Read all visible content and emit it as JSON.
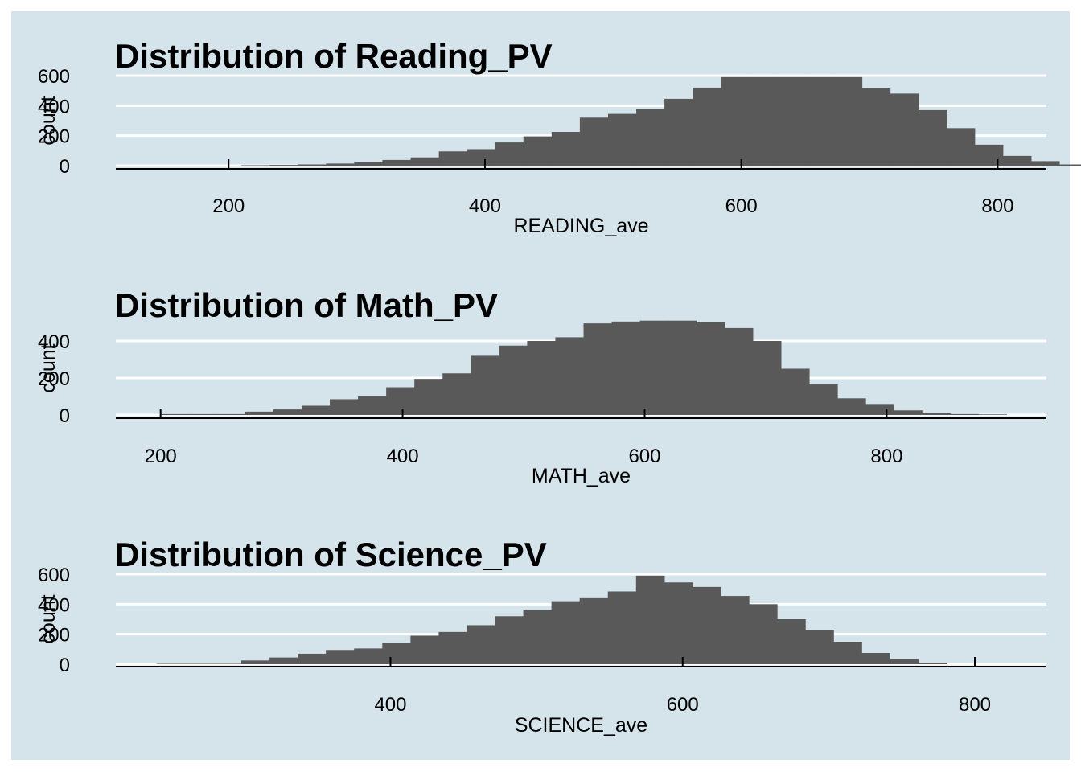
{
  "colors": {
    "background": "#d5e3ea",
    "bars": "#595959",
    "grid": "#ffffff",
    "axis": "#000000"
  },
  "chart_data": [
    {
      "type": "bar",
      "title": "Distribution of Reading_PV",
      "xlabel": "READING_ave",
      "ylabel": "count",
      "xlim": [
        112,
        838
      ],
      "ylim": [
        0,
        600
      ],
      "xticks": [
        "200",
        "400",
        "600",
        "800"
      ],
      "yticks": [
        "0",
        "200",
        "400",
        "600"
      ],
      "bin_width": 22,
      "bin_start": 210,
      "values": [
        3,
        5,
        8,
        14,
        22,
        38,
        55,
        95,
        110,
        155,
        195,
        225,
        320,
        345,
        375,
        445,
        520,
        590,
        590,
        590,
        590,
        590,
        515,
        480,
        370,
        250,
        140,
        65,
        30,
        8
      ]
    },
    {
      "type": "bar",
      "title": "Distribution of Math_PV",
      "xlabel": "MATH_ave",
      "ylabel": "count",
      "xlim": [
        163,
        932
      ],
      "ylim": [
        0,
        500
      ],
      "xticks": [
        "200",
        "400",
        "600",
        "800"
      ],
      "yticks": [
        "0",
        "200",
        "400"
      ],
      "bin_width": 23.3,
      "bin_start": 200,
      "values": [
        5,
        5,
        5,
        18,
        30,
        50,
        85,
        100,
        150,
        195,
        225,
        320,
        375,
        400,
        420,
        495,
        505,
        510,
        510,
        500,
        470,
        400,
        250,
        165,
        90,
        55,
        25,
        10,
        5,
        3
      ]
    },
    {
      "type": "bar",
      "title": "Distribution of Science_PV",
      "xlabel": "SCIENCE_ave",
      "ylabel": "count",
      "xlim": [
        212,
        849
      ],
      "ylim": [
        0,
        600
      ],
      "xticks": [
        "400",
        "600",
        "800"
      ],
      "yticks": [
        "0",
        "200",
        "400",
        "600"
      ],
      "bin_width": 19.3,
      "bin_start": 240,
      "values": [
        3,
        3,
        3,
        25,
        45,
        70,
        95,
        105,
        140,
        190,
        215,
        260,
        320,
        360,
        420,
        440,
        485,
        590,
        545,
        515,
        455,
        400,
        300,
        230,
        150,
        75,
        35,
        8
      ]
    }
  ]
}
